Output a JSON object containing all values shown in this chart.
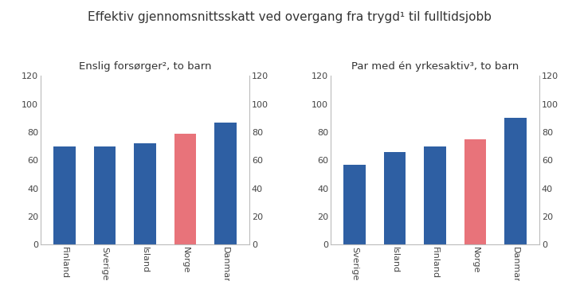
{
  "title": "Effektiv gjennomsnittsskatt ved overgang fra trygd¹ til fulltidsjobb",
  "subtitle_left": "Enslig forsørger², to barn",
  "subtitle_right": "Par med én yrkesaktiv³, to barn",
  "left_categories": [
    "Finland",
    "Sverige",
    "Island",
    "Norge",
    "Danmark"
  ],
  "left_values": [
    70,
    70,
    72,
    79,
    87
  ],
  "left_colors": [
    "#2e5fa3",
    "#2e5fa3",
    "#2e5fa3",
    "#e8737a",
    "#2e5fa3"
  ],
  "right_categories": [
    "Sverige",
    "Island",
    "Finland",
    "Norge",
    "Danmark"
  ],
  "right_values": [
    57,
    66,
    70,
    75,
    90
  ],
  "right_colors": [
    "#2e5fa3",
    "#2e5fa3",
    "#2e5fa3",
    "#e8737a",
    "#2e5fa3"
  ],
  "ylim": [
    0,
    120
  ],
  "yticks": [
    0,
    20,
    40,
    60,
    80,
    100,
    120
  ],
  "bar_width": 0.55,
  "title_fontsize": 11,
  "subtitle_fontsize": 9.5,
  "tick_fontsize": 8,
  "background_color": "#ffffff"
}
